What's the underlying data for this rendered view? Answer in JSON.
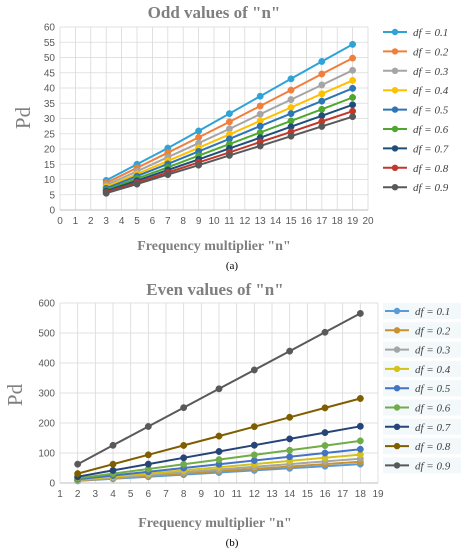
{
  "chart_data": [
    {
      "type": "line",
      "title": "Odd values of \"n\"",
      "xlabel": "Frequency multiplier \"n\"",
      "ylabel": "Pd",
      "caption": "(a)",
      "xlim": [
        0,
        20
      ],
      "ylim": [
        0,
        60
      ],
      "xticks": [
        "0",
        "1",
        "2",
        "3",
        "4",
        "5",
        "6",
        "7",
        "8",
        "9",
        "10",
        "11",
        "12",
        "13",
        "14",
        "15",
        "16",
        "17",
        "18",
        "19",
        "20"
      ],
      "yticks": [
        "0",
        "5",
        "10",
        "15",
        "20",
        "25",
        "30",
        "35",
        "40",
        "45",
        "50",
        "55",
        "60"
      ],
      "grid": true,
      "legend_position": "right",
      "x": [
        3,
        5,
        7,
        9,
        11,
        13,
        15,
        17,
        19
      ],
      "series": [
        {
          "name": "df = 0.1",
          "color": "#2fa3d6",
          "values": [
            9.7,
            15.0,
            20.3,
            25.9,
            31.6,
            37.3,
            43.0,
            48.7,
            54.3
          ]
        },
        {
          "name": "df = 0.2",
          "color": "#f07f3c",
          "values": [
            8.9,
            13.8,
            18.8,
            23.8,
            28.9,
            34.1,
            39.3,
            44.6,
            49.8
          ]
        },
        {
          "name": "df = 0.3",
          "color": "#a5a5a5",
          "values": [
            8.2,
            12.7,
            17.3,
            21.9,
            26.6,
            31.4,
            36.2,
            41.0,
            45.8
          ]
        },
        {
          "name": "df = 0.4",
          "color": "#ffc000",
          "values": [
            7.6,
            11.8,
            16.1,
            20.4,
            24.8,
            29.2,
            33.6,
            38.1,
            42.5
          ]
        },
        {
          "name": "df = 0.5",
          "color": "#2e75b6",
          "values": [
            7.1,
            11.1,
            15.1,
            19.2,
            23.3,
            27.5,
            31.6,
            35.7,
            39.9
          ]
        },
        {
          "name": "df = 0.6",
          "color": "#4ea72e",
          "values": [
            6.6,
            10.3,
            14.0,
            17.8,
            21.6,
            25.4,
            29.2,
            33.0,
            36.9
          ]
        },
        {
          "name": "df = 0.7",
          "color": "#1f4e79",
          "values": [
            6.2,
            9.6,
            13.1,
            16.6,
            20.2,
            23.7,
            27.3,
            30.9,
            34.5
          ]
        },
        {
          "name": "df = 0.8",
          "color": "#c0392b",
          "values": [
            5.8,
            9.0,
            12.3,
            15.6,
            18.9,
            22.3,
            25.6,
            29.0,
            32.4
          ]
        },
        {
          "name": "df = 0.9",
          "color": "#595959",
          "values": [
            5.5,
            8.5,
            11.6,
            14.7,
            17.9,
            21.0,
            24.2,
            27.4,
            30.6
          ]
        }
      ]
    },
    {
      "type": "line",
      "title": "Even values of \"n\"",
      "xlabel": "Frequency multiplier \"n\"",
      "ylabel": "Pd",
      "caption": "(b)",
      "xlim": [
        1,
        19
      ],
      "ylim": [
        0,
        600
      ],
      "xticks": [
        "1",
        "2",
        "3",
        "4",
        "5",
        "6",
        "7",
        "8",
        "9",
        "10",
        "11",
        "12",
        "13",
        "14",
        "15",
        "16",
        "17",
        "18",
        "19"
      ],
      "yticks": [
        "0",
        "100",
        "200",
        "300",
        "400",
        "500",
        "600"
      ],
      "grid": true,
      "legend_position": "right",
      "x": [
        2,
        4,
        6,
        8,
        10,
        12,
        14,
        16,
        18
      ],
      "series": [
        {
          "name": "df = 0.1",
          "color": "#5b9bd5",
          "values": [
            7,
            14,
            21,
            28,
            35,
            42,
            49,
            56,
            63
          ]
        },
        {
          "name": "df = 0.2",
          "color": "#c9922e",
          "values": [
            8,
            16,
            24,
            32,
            40,
            47,
            55,
            63,
            71
          ]
        },
        {
          "name": "df = 0.3",
          "color": "#a5a5a5",
          "values": [
            9,
            18,
            27,
            36,
            45,
            54,
            63,
            72,
            81
          ]
        },
        {
          "name": "df = 0.4",
          "color": "#d4c21a",
          "values": [
            10.5,
            21,
            31.5,
            42,
            52.5,
            63,
            73.5,
            84,
            94.5
          ]
        },
        {
          "name": "df = 0.5",
          "color": "#4472c4",
          "values": [
            12.5,
            25,
            37.5,
            50,
            62.5,
            75,
            87.5,
            100,
            112.5
          ]
        },
        {
          "name": "df = 0.6",
          "color": "#70ad47",
          "values": [
            15.6,
            31.2,
            46.8,
            62.4,
            78,
            93.6,
            109.2,
            124.8,
            140.4
          ]
        },
        {
          "name": "df = 0.7",
          "color": "#264478",
          "values": [
            21,
            42,
            63,
            84,
            105,
            126,
            147,
            168,
            189
          ]
        },
        {
          "name": "df = 0.8",
          "color": "#7f5e00",
          "values": [
            31.3,
            62.6,
            93.9,
            125.2,
            156.5,
            187.8,
            219.1,
            250.4,
            281.7
          ]
        },
        {
          "name": "df = 0.9",
          "color": "#595959",
          "values": [
            62.8,
            125.6,
            188.4,
            251.2,
            314,
            376.8,
            439.6,
            502.4,
            565.2
          ]
        }
      ]
    }
  ]
}
